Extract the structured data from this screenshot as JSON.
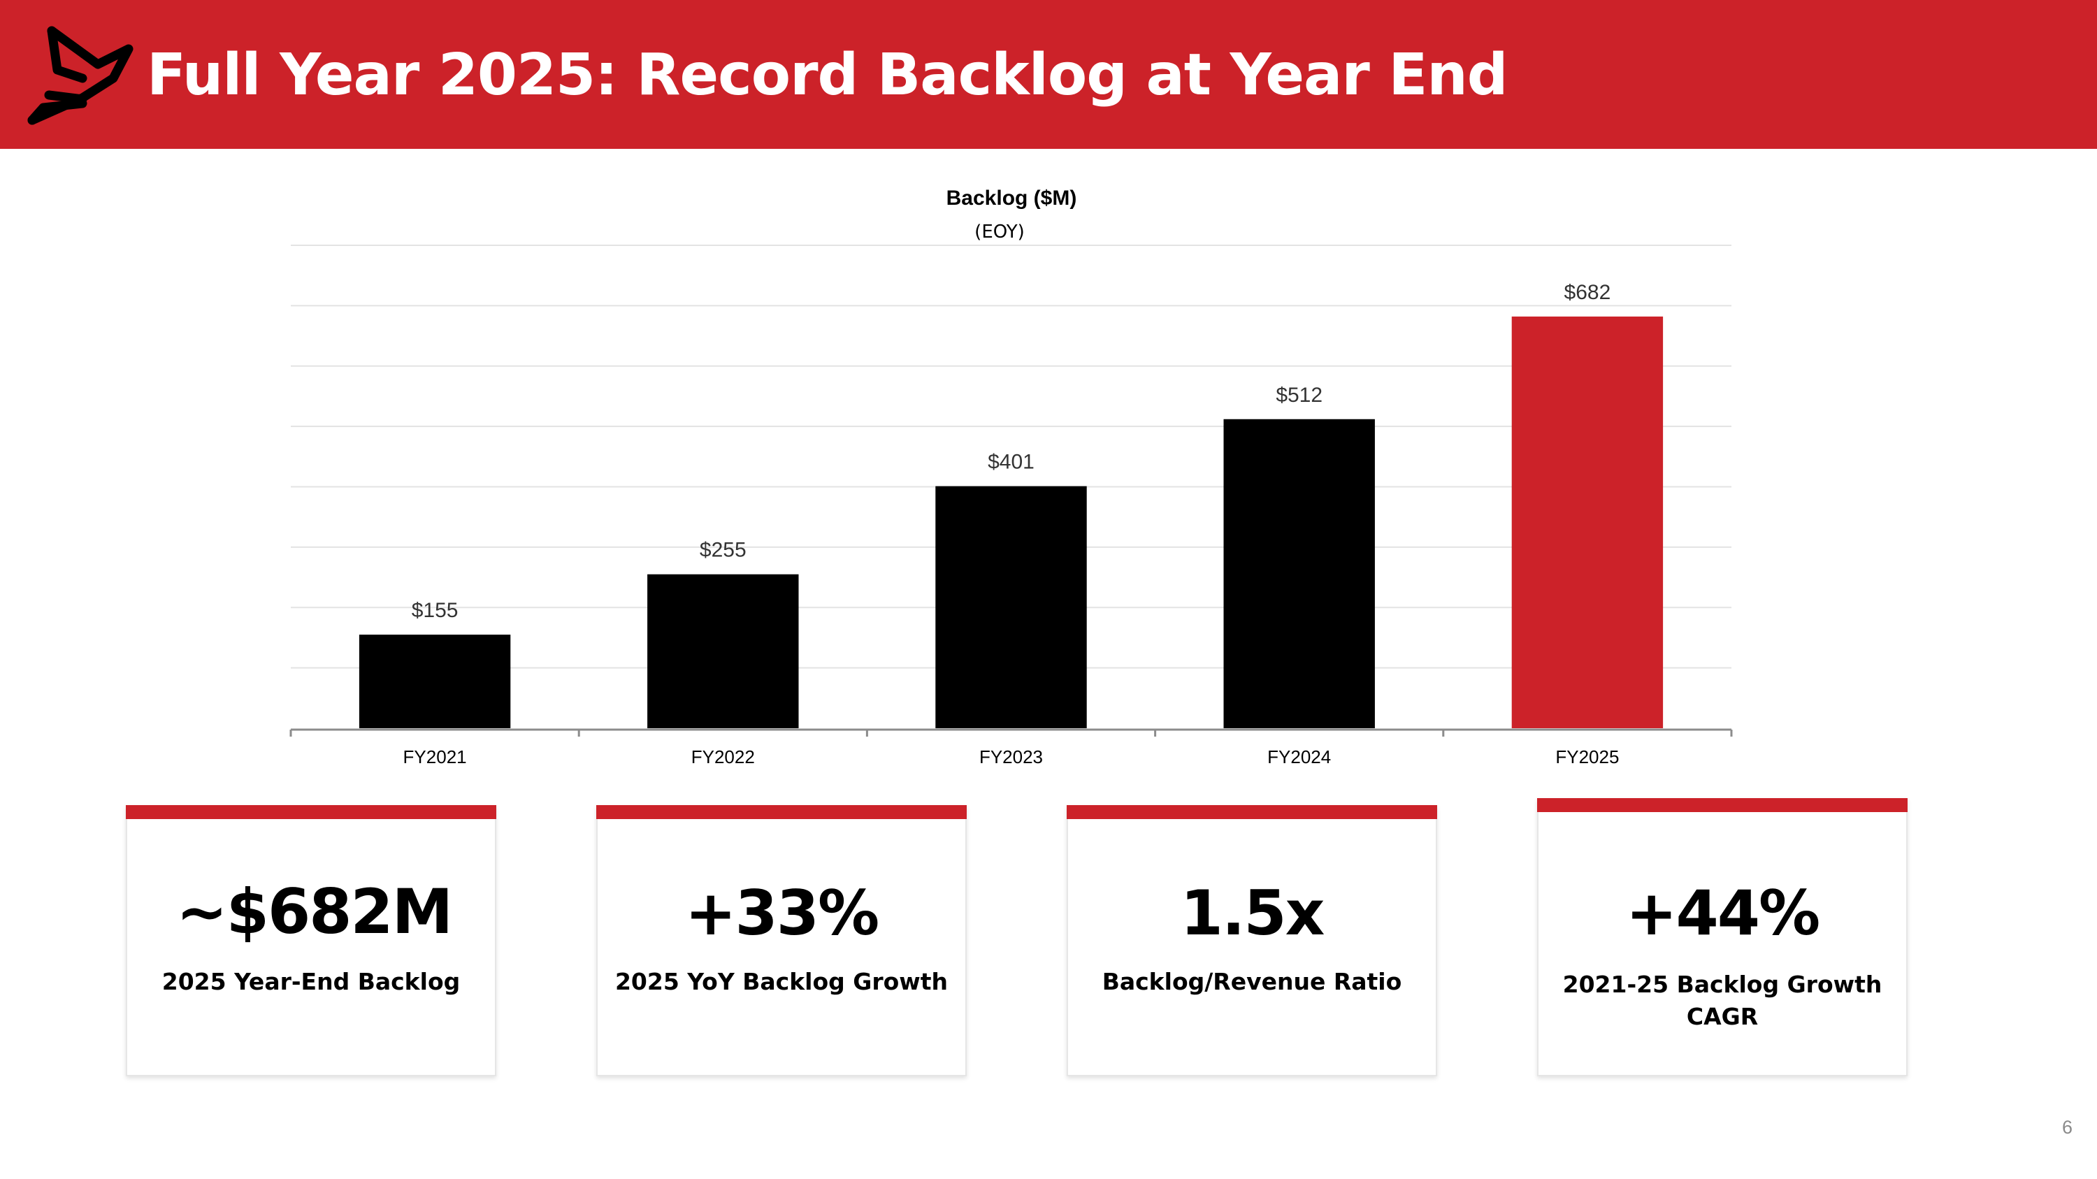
{
  "slide": {
    "title": "Full Year 2025: Record Backlog at Year End",
    "page_number": "6",
    "brand_color": "#cc2229",
    "logo_icon": "cardinal-bird-logo"
  },
  "chart_data": {
    "type": "bar",
    "title": "Backlog ($M)",
    "subtitle": "(EOY)",
    "categories": [
      "FY2021",
      "FY2022",
      "FY2023",
      "FY2024",
      "FY2025"
    ],
    "values": [
      155,
      255,
      401,
      512,
      682
    ],
    "data_labels": [
      "$155",
      "$255",
      "$401",
      "$512",
      "$682"
    ],
    "bar_colors": [
      "#000000",
      "#000000",
      "#000000",
      "#000000",
      "#cc2229"
    ],
    "ylim": [
      0,
      800
    ],
    "gridlines": true,
    "legend": "none",
    "xlabel": "",
    "ylabel": ""
  },
  "kpis": [
    {
      "value": "~$682M",
      "label": "2025 Year-End Backlog"
    },
    {
      "value": "+33%",
      "label": "2025 YoY Backlog Growth"
    },
    {
      "value": "1.5x",
      "label": "Backlog/Revenue Ratio"
    },
    {
      "value": "+44%",
      "label": "2021-25 Backlog Growth CAGR"
    }
  ]
}
